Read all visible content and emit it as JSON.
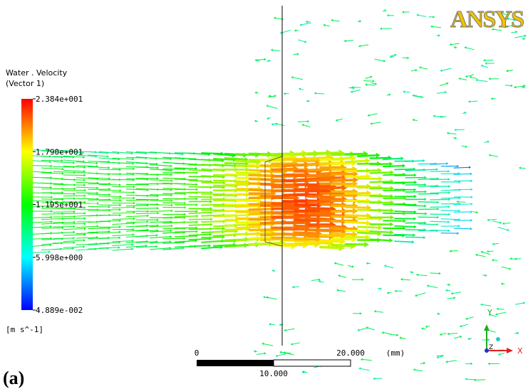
{
  "logo": "ANSYS",
  "legend": {
    "title": "Water . Velocity",
    "subtitle": "(Vector 1)",
    "ticks": [
      "2.384e+001",
      "1.790e+001",
      "1.195e+001",
      "5.998e+000",
      "4.889e-002"
    ],
    "units": "[m s^-1]"
  },
  "scale_bar": {
    "start": "0",
    "end": "20.000",
    "mid": "10.000",
    "units": "(mm)"
  },
  "triad": {
    "x": "X",
    "y": "Y",
    "z": "Z"
  },
  "panel_label": "(a)"
}
